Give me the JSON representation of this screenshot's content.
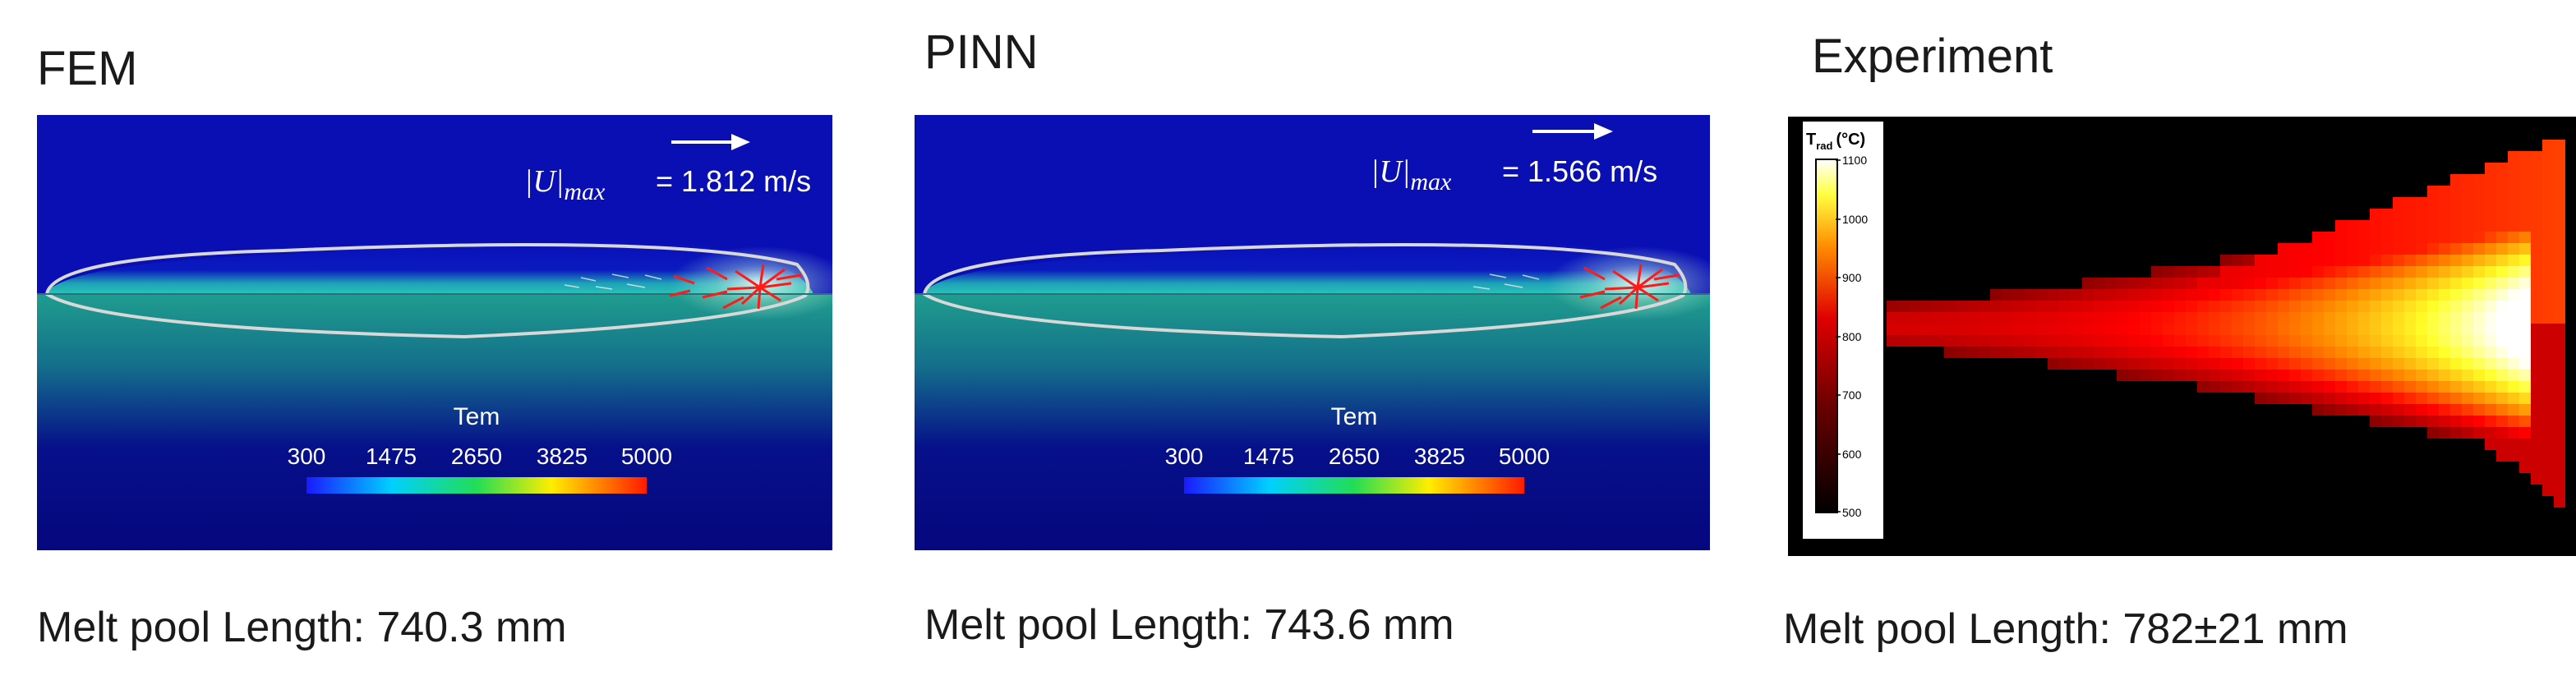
{
  "panels": [
    {
      "title": "FEM",
      "velocity_label": "= 1.812 m/s",
      "colorbar": {
        "title": "Tem",
        "ticks": [
          "300",
          "1475",
          "2650",
          "3825",
          "5000"
        ]
      },
      "caption": "Melt pool Length: 740.3 mm"
    },
    {
      "title": "PINN",
      "velocity_label": "= 1.566 m/s",
      "colorbar": {
        "title": "Tem",
        "ticks": [
          "300",
          "1475",
          "2650",
          "3825",
          "5000"
        ]
      },
      "caption": "Melt pool Length: 743.6 mm"
    },
    {
      "title": "Experiment",
      "colorbar": {
        "title": "T",
        "title_sub": "rad",
        "title_unit": "(°C)",
        "ticks": [
          "1100",
          "1000",
          "900",
          "800",
          "700",
          "600",
          "500"
        ]
      },
      "caption": "Melt pool Length: 782±21 mm"
    }
  ],
  "symbols": {
    "u_max_base": "|U|",
    "u_max_sub": "max"
  },
  "colors": {
    "sim_background": "#0a0fb4",
    "substrate": "#05077e",
    "pool_boundary": "#d8d8d8",
    "flow_vectors": "#ff1a1a",
    "exp_background": "#000000"
  }
}
